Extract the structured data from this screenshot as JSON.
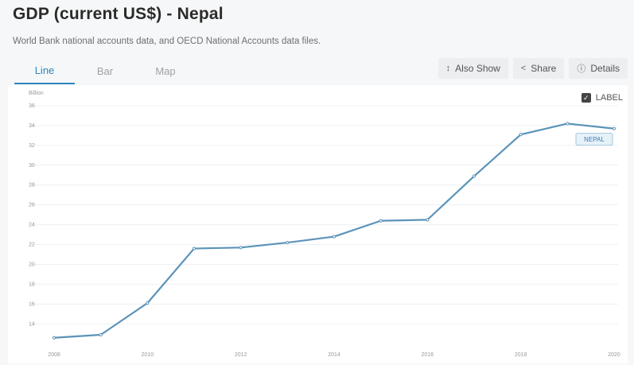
{
  "page": {
    "title": "GDP (current US$) - Nepal",
    "subtitle": "World Bank national accounts data, and OECD National Accounts data files."
  },
  "tabs": [
    {
      "label": "Line",
      "active": true
    },
    {
      "label": "Bar",
      "active": false
    },
    {
      "label": "Map",
      "active": false
    }
  ],
  "actions": [
    {
      "icon": "↕",
      "icon_name": "sort-icon",
      "label": "Also Show"
    },
    {
      "icon": "<",
      "icon_name": "share-icon",
      "label": "Share"
    },
    {
      "icon": "ⓘ",
      "icon_name": "info-icon",
      "label": "Details"
    }
  ],
  "label_toggle": {
    "label": "LABEL",
    "checked": true
  },
  "colors": {
    "line": "#5b93b8",
    "accent": "#2e86c1"
  },
  "chart_data": {
    "type": "line",
    "title": "GDP (current US$) - Nepal",
    "ylabel": "Billion",
    "xlabel": "",
    "ylim": [
      12.5,
      36
    ],
    "xlim": [
      2008,
      2020
    ],
    "y_ticks": [
      14,
      16,
      18,
      20,
      22,
      24,
      26,
      28,
      30,
      32,
      34,
      36
    ],
    "x_ticks": [
      2008,
      2010,
      2012,
      2014,
      2016,
      2018,
      2020
    ],
    "grid": true,
    "series": [
      {
        "name": "NEPAL",
        "x": [
          2008,
          2009,
          2010,
          2011,
          2012,
          2013,
          2014,
          2015,
          2016,
          2017,
          2018,
          2019,
          2020
        ],
        "values": [
          12.6,
          12.9,
          16.1,
          21.6,
          21.7,
          22.2,
          22.8,
          24.4,
          24.5,
          28.9,
          33.1,
          34.2,
          33.7
        ]
      }
    ]
  }
}
